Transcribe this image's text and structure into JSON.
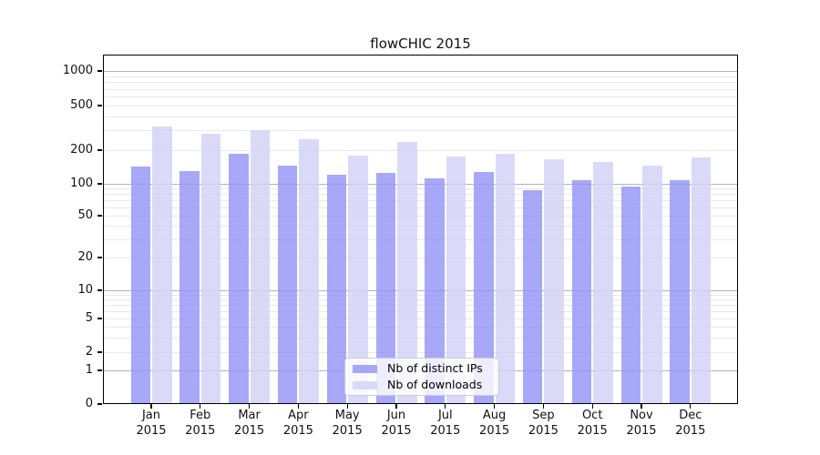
{
  "chart_data": {
    "type": "bar",
    "title": "flowCHIC 2015",
    "categories": [
      "Jan",
      "Feb",
      "Mar",
      "Apr",
      "May",
      "Jun",
      "Jul",
      "Aug",
      "Sep",
      "Oct",
      "Nov",
      "Dec"
    ],
    "category_year": "2015",
    "series": [
      {
        "name": "Nb of distinct IPs",
        "color": "rgba(149,149,248,0.82)",
        "values": [
          142,
          130,
          185,
          145,
          120,
          125,
          112,
          127,
          87,
          107,
          94,
          108
        ]
      },
      {
        "name": "Nb of downloads",
        "color": "rgba(210,210,247,0.82)",
        "values": [
          325,
          282,
          300,
          249,
          178,
          235,
          175,
          185,
          165,
          156,
          145,
          172
        ]
      }
    ],
    "y_ticks": [
      0,
      1,
      2,
      5,
      10,
      20,
      50,
      100,
      200,
      500,
      1000
    ],
    "y_scale": "log",
    "xlabel": "",
    "ylabel": "",
    "grid": "major-and-minor",
    "legend_position": "lower-center"
  }
}
